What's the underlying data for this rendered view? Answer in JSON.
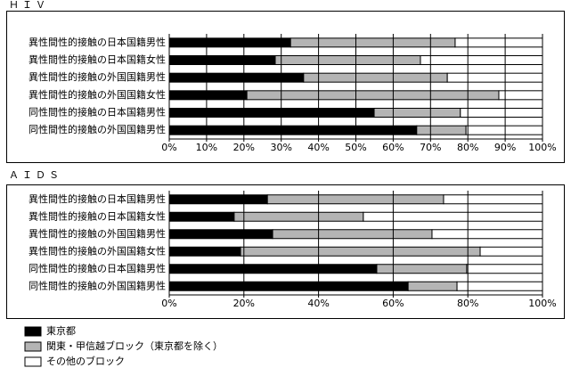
{
  "chart_data": [
    {
      "type": "bar",
      "orientation": "horizontal",
      "stacked": true,
      "title": "ＨＩＶ",
      "categories": [
        "異性間性的接触の日本国籍男性",
        "異性間性的接触の日本国籍女性",
        "異性間性的接触の外国国籍男性",
        "異性間性的接触の外国国籍女性",
        "同性間性的接触の日本国籍男性",
        "同性間性的接触の外国国籍男性"
      ],
      "series": [
        {
          "color": "#000000",
          "values": [
            32.5,
            28.4,
            36.0,
            20.8,
            54.9,
            66.3
          ]
        },
        {
          "color": "#b4b4b4",
          "values": [
            44.1,
            38.9,
            38.5,
            67.5,
            23.1,
            13.2
          ]
        },
        {
          "color": "#ffffff",
          "values": [
            23.4,
            32.7,
            25.5,
            11.7,
            22.0,
            20.5
          ]
        }
      ],
      "xlim": [
        0,
        100
      ],
      "xticks": [
        {
          "value": 0,
          "label": "0%"
        },
        {
          "value": 10,
          "label": "10%"
        },
        {
          "value": 20,
          "label": "20%"
        },
        {
          "value": 30,
          "label": "30%"
        },
        {
          "value": 40,
          "label": "40%"
        },
        {
          "value": 50,
          "label": "50%"
        },
        {
          "value": 60,
          "label": "60%"
        },
        {
          "value": 70,
          "label": "70%"
        },
        {
          "value": 80,
          "label": "80%"
        },
        {
          "value": 90,
          "label": "90%"
        },
        {
          "value": 100,
          "label": "100%"
        }
      ],
      "grid": true
    },
    {
      "type": "bar",
      "orientation": "horizontal",
      "stacked": true,
      "title": "ＡＩＤＳ",
      "categories": [
        "異性間性的接触の日本国籍男性",
        "異性間性的接触の日本国籍女性",
        "異性間性的接触の外国国籍男性",
        "異性間性的接触の外国国籍女性",
        "同性間性的接触の日本国籍男性",
        "同性間性的接触の外国国籍男性"
      ],
      "series": [
        {
          "color": "#000000",
          "values": [
            26.3,
            17.4,
            27.7,
            19.1,
            55.6,
            64.0
          ]
        },
        {
          "color": "#b4b4b4",
          "values": [
            47.2,
            34.6,
            42.7,
            64.2,
            24.1,
            13.1
          ]
        },
        {
          "color": "#ffffff",
          "values": [
            26.5,
            48.0,
            29.6,
            16.7,
            20.3,
            22.9
          ]
        }
      ],
      "xlim": [
        0,
        100
      ],
      "xticks": [
        {
          "value": 0,
          "label": "0%"
        },
        {
          "value": 20,
          "label": "20%"
        },
        {
          "value": 40,
          "label": "40%"
        },
        {
          "value": 60,
          "label": "60%"
        },
        {
          "value": 80,
          "label": "80%"
        },
        {
          "value": 100,
          "label": "100%"
        }
      ],
      "grid": true
    }
  ],
  "legend": [
    {
      "name": "東京都",
      "color": "#000000"
    },
    {
      "name": "関東・甲信越ブロック（東京都を除く）",
      "color": "#b4b4b4"
    },
    {
      "name": "その他のブロック",
      "color": "#ffffff"
    }
  ]
}
